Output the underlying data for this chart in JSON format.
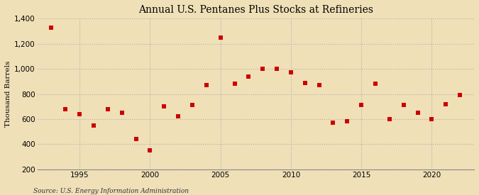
{
  "title": "Annual U.S. Pentanes Plus Stocks at Refineries",
  "ylabel": "Thousand Barrels",
  "source": "Source: U.S. Energy Information Administration",
  "background_color": "#f0e0b8",
  "plot_background_color": "#f0e0b8",
  "marker_color": "#cc0000",
  "marker_size": 4,
  "years": [
    1993,
    1994,
    1995,
    1996,
    1997,
    1998,
    1999,
    2000,
    2001,
    2002,
    2003,
    2004,
    2005,
    2006,
    2007,
    2008,
    2009,
    2010,
    2011,
    2012,
    2013,
    2014,
    2015,
    2016,
    2017,
    2018,
    2019,
    2020,
    2021,
    2022
  ],
  "values": [
    1330,
    680,
    640,
    550,
    680,
    650,
    440,
    350,
    700,
    620,
    710,
    870,
    1250,
    880,
    940,
    1000,
    1000,
    970,
    890,
    870,
    570,
    580,
    710,
    880,
    600,
    710,
    650,
    600,
    720,
    790
  ],
  "ylim": [
    200,
    1400
  ],
  "xlim": [
    1992,
    2023
  ],
  "yticks": [
    200,
    400,
    600,
    800,
    1000,
    1200,
    1400
  ],
  "ytick_labels": [
    "200",
    "400",
    "600",
    "800",
    "1,000",
    "1,200",
    "1,400"
  ],
  "xticks": [
    1995,
    2000,
    2005,
    2010,
    2015,
    2020
  ],
  "grid_color": "#aaaaaa",
  "grid_linestyle": "--",
  "title_fontsize": 10,
  "label_fontsize": 7.5,
  "tick_fontsize": 7.5,
  "source_fontsize": 6.5
}
